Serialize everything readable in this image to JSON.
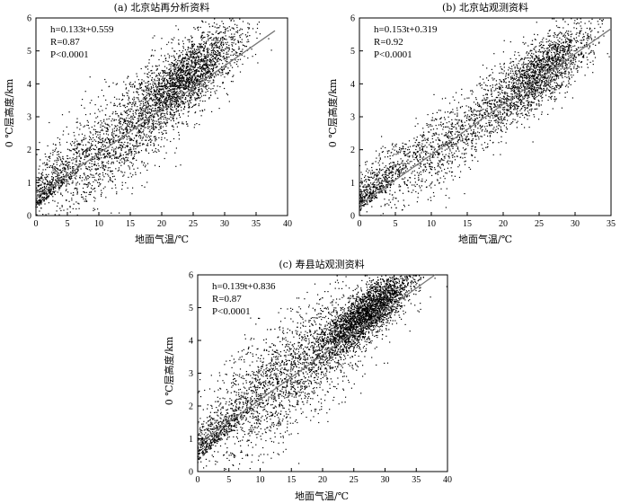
{
  "chart_data": [
    {
      "type": "scatter",
      "title": "(a) 北京站再分析资料",
      "xlabel": "地面气温/℃",
      "ylabel": "0 ℃层高度/km",
      "xlim": [
        0,
        40
      ],
      "ylim": [
        0,
        6
      ],
      "xticks": [
        0,
        5,
        10,
        15,
        20,
        25,
        30,
        35,
        40
      ],
      "yticks": [
        0,
        1,
        2,
        3,
        4,
        5,
        6
      ],
      "grid": false,
      "annotations": [
        "h=0.133t+0.559",
        "R=0.87",
        "P<0.0001"
      ],
      "fit": {
        "slope": 0.133,
        "intercept": 0.559,
        "x_range": [
          0,
          38
        ]
      },
      "clusters": [
        {
          "cx": 24,
          "cy": 4.2,
          "sx": 4.5,
          "sy": 0.5,
          "n": 2200
        },
        {
          "cx": 13,
          "cy": 2.3,
          "sx": 6.5,
          "sy": 0.8,
          "n": 1500
        }
      ]
    },
    {
      "type": "scatter",
      "title": "(b) 北京站观测资料",
      "xlabel": "地面气温/℃",
      "ylabel": "0 ℃层高度/km",
      "xlim": [
        0,
        35
      ],
      "ylim": [
        0,
        6
      ],
      "xticks": [
        0,
        5,
        10,
        15,
        20,
        25,
        30,
        35
      ],
      "yticks": [
        0,
        1,
        2,
        3,
        4,
        5,
        6
      ],
      "grid": false,
      "annotations": [
        "h=0.153t+0.319",
        "R=0.92",
        "P<0.0001"
      ],
      "fit": {
        "slope": 0.153,
        "intercept": 0.319,
        "x_range": [
          0,
          35
        ]
      },
      "clusters": [
        {
          "cx": 25,
          "cy": 4.3,
          "sx": 3.8,
          "sy": 0.5,
          "n": 1900
        },
        {
          "cx": 12,
          "cy": 2.2,
          "sx": 6.0,
          "sy": 0.6,
          "n": 1100
        }
      ]
    },
    {
      "type": "scatter",
      "title": "(c) 寿县站观测资料",
      "xlabel": "地面气温/℃",
      "ylabel": "0 ℃层高度/km",
      "xlim": [
        0,
        40
      ],
      "ylim": [
        0,
        6
      ],
      "xticks": [
        0,
        5,
        10,
        15,
        20,
        25,
        30,
        35,
        40
      ],
      "yticks": [
        0,
        1,
        2,
        3,
        4,
        5,
        6
      ],
      "grid": false,
      "annotations": [
        "h=0.139t+0.836",
        "R=0.87",
        "P<0.0001"
      ],
      "fit": {
        "slope": 0.139,
        "intercept": 0.836,
        "x_range": [
          0,
          38
        ]
      },
      "clusters": [
        {
          "cx": 27,
          "cy": 4.8,
          "sx": 4.0,
          "sy": 0.4,
          "n": 2800
        },
        {
          "cx": 14,
          "cy": 2.9,
          "sx": 7.0,
          "sy": 0.9,
          "n": 2000
        }
      ]
    }
  ]
}
